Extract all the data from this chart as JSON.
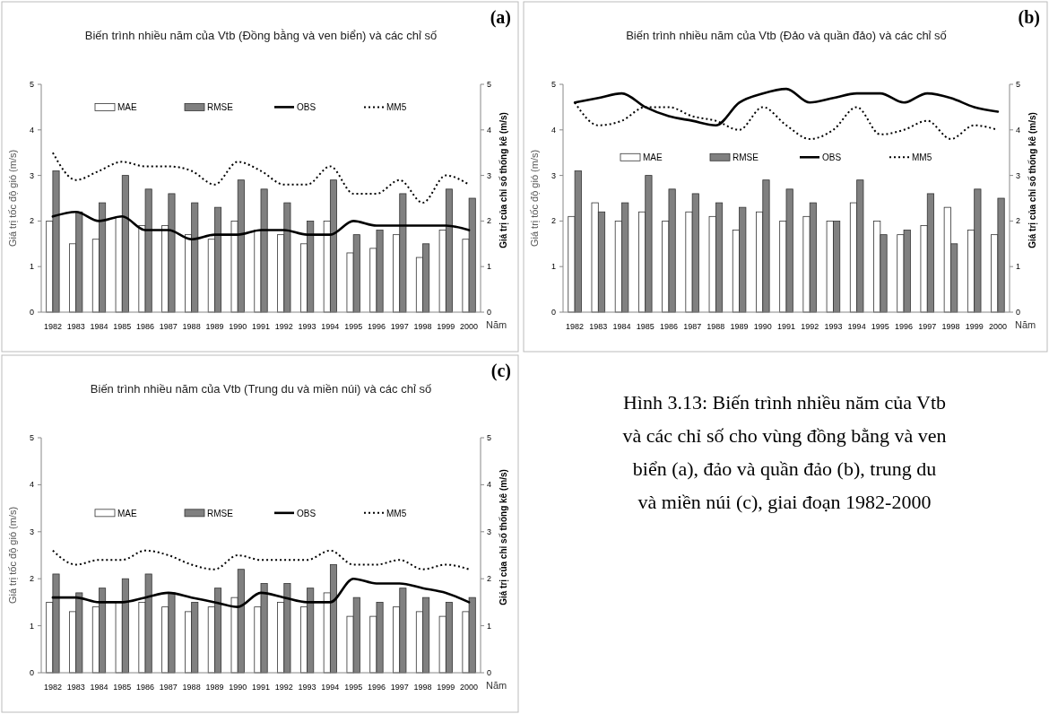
{
  "chart_data": [
    {
      "type": "bar",
      "title": "Biến trình nhiều năm của Vtb (Đồng bằng và ven biển) và các chỉ số",
      "ylabel": "Giá trị tốc độ gió (m/s)",
      "y2label": "Giá trị của chỉ số thống kê (m/s)",
      "xlabel": "Năm",
      "annotations": [
        "(a)"
      ],
      "categories": [
        "1982",
        "1983",
        "1984",
        "1985",
        "1986",
        "1987",
        "1988",
        "1989",
        "1990",
        "1991",
        "1992",
        "1993",
        "1994",
        "1995",
        "1996",
        "1997",
        "1998",
        "1999",
        "2000"
      ],
      "series": [
        {
          "name": "MAE",
          "type": "bar",
          "color": "#ffffff",
          "values": [
            2.0,
            1.5,
            1.6,
            2.1,
            1.9,
            1.9,
            1.7,
            1.6,
            2.0,
            1.8,
            1.7,
            1.5,
            2.0,
            1.3,
            1.4,
            1.7,
            1.2,
            1.8,
            1.6
          ]
        },
        {
          "name": "RMSE",
          "type": "bar",
          "color": "#808080",
          "values": [
            3.1,
            2.2,
            2.4,
            3.0,
            2.7,
            2.6,
            2.4,
            2.3,
            2.9,
            2.7,
            2.4,
            2.0,
            2.9,
            1.7,
            1.8,
            2.6,
            1.5,
            2.7,
            2.5
          ]
        },
        {
          "name": "OBS",
          "type": "line",
          "color": "#000000",
          "line_style": "solid",
          "values": [
            2.1,
            2.2,
            2.0,
            2.1,
            1.8,
            1.8,
            1.6,
            1.7,
            1.7,
            1.8,
            1.8,
            1.7,
            1.7,
            2.0,
            1.9,
            1.9,
            1.9,
            1.9,
            1.8
          ]
        },
        {
          "name": "MM5",
          "type": "line",
          "color": "#000000",
          "line_style": "dotted",
          "values": [
            3.5,
            2.9,
            3.1,
            3.3,
            3.2,
            3.2,
            3.1,
            2.8,
            3.3,
            3.1,
            2.8,
            2.8,
            3.2,
            2.6,
            2.6,
            2.9,
            2.4,
            3.0,
            2.8
          ]
        }
      ],
      "ylim": [
        0,
        5
      ],
      "yticks": [
        0,
        1,
        2,
        3,
        4,
        5
      ],
      "y2lim": [
        0,
        5
      ],
      "y2ticks": [
        0,
        1,
        2,
        3,
        4,
        5
      ],
      "legend": "top",
      "grid": false
    },
    {
      "type": "bar",
      "title": "Biến trình nhiều năm của Vtb (Đảo và quần đảo) và các chỉ số",
      "ylabel": "Giá trị tốc độ gió (m/s)",
      "y2label": "Giá trị của chỉ số thống kê (m/s)",
      "xlabel": "Năm",
      "annotations": [
        "(b)"
      ],
      "categories": [
        "1982",
        "1983",
        "1984",
        "1985",
        "1986",
        "1987",
        "1988",
        "1989",
        "1990",
        "1991",
        "1992",
        "1993",
        "1994",
        "1995",
        "1996",
        "1997",
        "1998",
        "1999",
        "2000"
      ],
      "series": [
        {
          "name": "MAE",
          "type": "bar",
          "color": "#ffffff",
          "values": [
            2.1,
            2.4,
            2.0,
            2.2,
            2.0,
            2.2,
            2.1,
            1.8,
            2.2,
            2.0,
            2.1,
            2.0,
            2.4,
            2.0,
            1.7,
            1.9,
            2.3,
            1.8,
            1.7
          ]
        },
        {
          "name": "RMSE",
          "type": "bar",
          "color": "#808080",
          "values": [
            3.1,
            2.2,
            2.4,
            3.0,
            2.7,
            2.6,
            2.4,
            2.3,
            2.9,
            2.7,
            2.4,
            2.0,
            2.9,
            1.7,
            1.8,
            2.6,
            1.5,
            2.7,
            2.5
          ]
        },
        {
          "name": "OBS",
          "type": "line",
          "color": "#000000",
          "line_style": "solid",
          "values": [
            4.6,
            4.7,
            4.8,
            4.5,
            4.3,
            4.2,
            4.1,
            4.6,
            4.8,
            4.9,
            4.6,
            4.7,
            4.8,
            4.8,
            4.6,
            4.8,
            4.7,
            4.5,
            4.4
          ]
        },
        {
          "name": "MM5",
          "type": "line",
          "color": "#000000",
          "line_style": "dotted",
          "values": [
            4.6,
            4.1,
            4.2,
            4.5,
            4.5,
            4.3,
            4.2,
            4.0,
            4.5,
            4.1,
            3.8,
            4.0,
            4.5,
            3.9,
            4.0,
            4.2,
            3.8,
            4.1,
            4.0
          ]
        }
      ],
      "ylim": [
        0,
        5
      ],
      "yticks": [
        0,
        1,
        2,
        3,
        4,
        5
      ],
      "y2lim": [
        0,
        5
      ],
      "y2ticks": [
        0,
        1,
        2,
        3,
        4,
        5
      ],
      "legend": "center",
      "grid": false
    },
    {
      "type": "bar",
      "title": "Biến trình nhiều năm của Vtb (Trung du và miền núi) và các chỉ số",
      "ylabel": "Giá trị tốc độ gió (m/s)",
      "y2label": "Giá trị của chỉ số thống kê (m/s)",
      "xlabel": "Năm",
      "annotations": [
        "(c)"
      ],
      "categories": [
        "1982",
        "1983",
        "1984",
        "1985",
        "1986",
        "1987",
        "1988",
        "1989",
        "1990",
        "1991",
        "1992",
        "1993",
        "1994",
        "1995",
        "1996",
        "1997",
        "1998",
        "1999",
        "2000"
      ],
      "series": [
        {
          "name": "MAE",
          "type": "bar",
          "color": "#ffffff",
          "values": [
            1.5,
            1.3,
            1.4,
            1.5,
            1.5,
            1.4,
            1.3,
            1.4,
            1.6,
            1.4,
            1.5,
            1.4,
            1.7,
            1.2,
            1.2,
            1.4,
            1.3,
            1.2,
            1.3
          ]
        },
        {
          "name": "RMSE",
          "type": "bar",
          "color": "#808080",
          "values": [
            2.1,
            1.7,
            1.8,
            2.0,
            2.1,
            1.7,
            1.5,
            1.8,
            2.2,
            1.9,
            1.9,
            1.8,
            2.3,
            1.6,
            1.5,
            1.8,
            1.6,
            1.5,
            1.6
          ]
        },
        {
          "name": "OBS",
          "type": "line",
          "color": "#000000",
          "line_style": "solid",
          "values": [
            1.6,
            1.6,
            1.5,
            1.5,
            1.6,
            1.7,
            1.6,
            1.5,
            1.4,
            1.7,
            1.6,
            1.5,
            1.5,
            2.0,
            1.9,
            1.9,
            1.8,
            1.7,
            1.5
          ]
        },
        {
          "name": "MM5",
          "type": "line",
          "color": "#000000",
          "line_style": "dotted",
          "values": [
            2.6,
            2.3,
            2.4,
            2.4,
            2.6,
            2.5,
            2.3,
            2.2,
            2.5,
            2.4,
            2.4,
            2.4,
            2.6,
            2.3,
            2.3,
            2.4,
            2.2,
            2.3,
            2.2
          ]
        }
      ],
      "ylim": [
        0,
        5
      ],
      "yticks": [
        0,
        1,
        2,
        3,
        4,
        5
      ],
      "y2lim": [
        0,
        5
      ],
      "y2ticks": [
        0,
        1,
        2,
        3,
        4,
        5
      ],
      "legend": "center",
      "grid": false
    },
    {
      "type": "other",
      "annotations": [
        "Hình 3.13: Biến trình nhiều năm của Vtb và các chỉ số cho vùng đồng bằng và ven biển (a), đảo và quần đảo (b), trung du và miền núi (c), giai đoạn 1982-2000"
      ]
    }
  ]
}
